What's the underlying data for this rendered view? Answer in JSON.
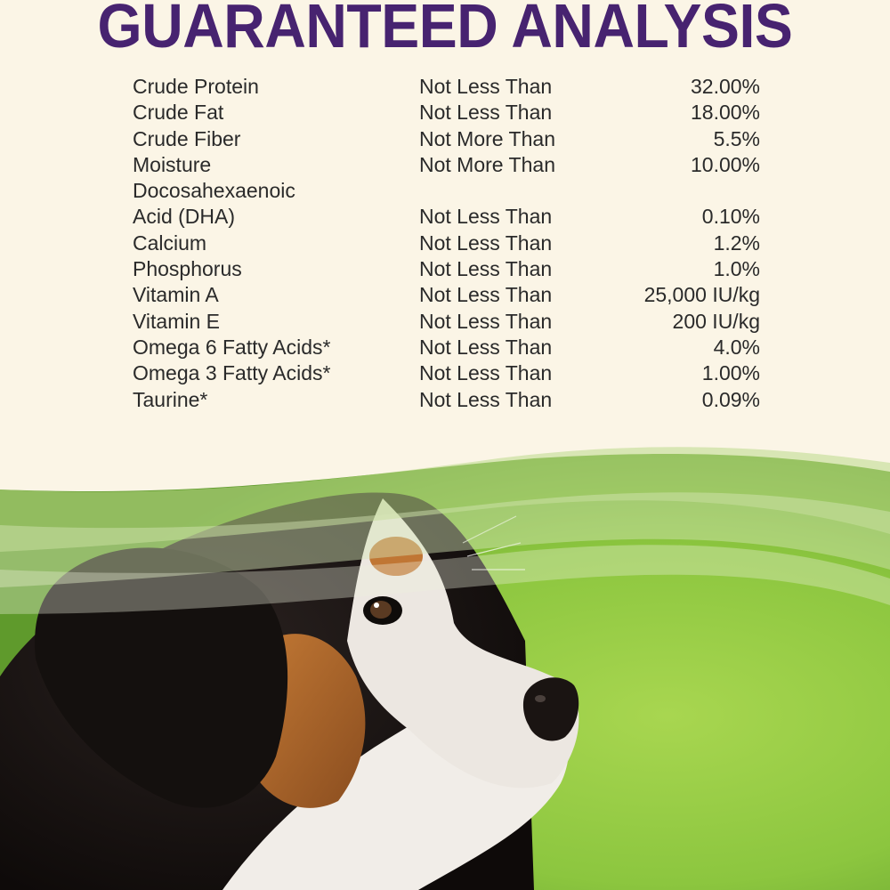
{
  "heading": "GUARANTEED ANALYSIS",
  "rows": [
    {
      "name": "Crude Protein",
      "qualifier": "Not Less Than",
      "value": "32.00%"
    },
    {
      "name": "Crude Fat",
      "qualifier": "Not Less Than",
      "value": "18.00%"
    },
    {
      "name": "Crude Fiber",
      "qualifier": "Not More Than",
      "value": "5.5%"
    },
    {
      "name": "Moisture",
      "qualifier": "Not More Than",
      "value": "10.00%"
    },
    {
      "name": "Docosahexaenoic",
      "qualifier": "",
      "value": ""
    },
    {
      "name": "Acid (DHA)",
      "qualifier": "Not Less Than",
      "value": "0.10%"
    },
    {
      "name": "Calcium",
      "qualifier": "Not Less Than",
      "value": "1.2%"
    },
    {
      "name": "Phosphorus",
      "qualifier": "Not Less Than",
      "value": "1.0%"
    },
    {
      "name": "Vitamin A",
      "qualifier": "Not Less Than",
      "value": "25,000 IU/kg"
    },
    {
      "name": "Vitamin E",
      "qualifier": "Not Less Than",
      "value": "200 IU/kg"
    },
    {
      "name": "Omega 6 Fatty Acids*",
      "qualifier": "Not Less Than",
      "value": "4.0%"
    },
    {
      "name": "Omega 3 Fatty Acids*",
      "qualifier": "Not Less Than",
      "value": "1.00%"
    },
    {
      "name": "Taurine*",
      "qualifier": "Not Less Than",
      "value": "0.09%"
    }
  ],
  "colors": {
    "heading": "#472370",
    "background": "#fbf5e6",
    "grass": "#8cc63f",
    "text": "#2a2a2a"
  }
}
